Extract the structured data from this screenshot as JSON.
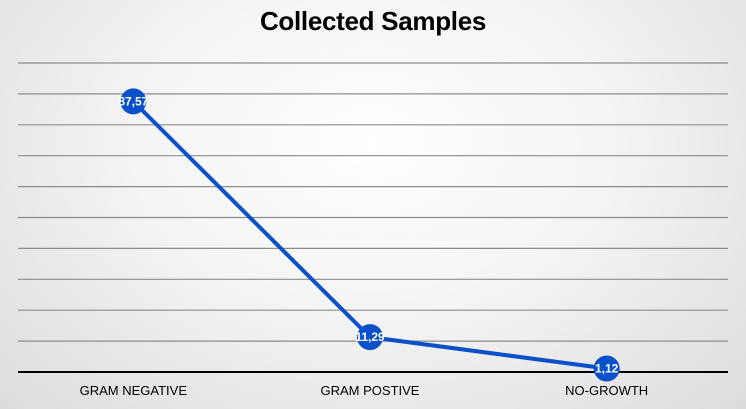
{
  "chart_data": {
    "type": "line",
    "title": "Collected Samples",
    "categories": [
      "GRAM NEGATIVE",
      "GRAM POSTIVE",
      "NO-GROWTH"
    ],
    "series": [
      {
        "values": [
          87.57,
          11.29,
          1.12
        ],
        "data_labels": [
          "87,57",
          "11,29",
          "1,12"
        ],
        "color": "#0a50c8"
      }
    ],
    "ylim": [
      0,
      100
    ],
    "grid": true,
    "gridline_color": "#8c8c8c",
    "axis_color": "#000000"
  }
}
